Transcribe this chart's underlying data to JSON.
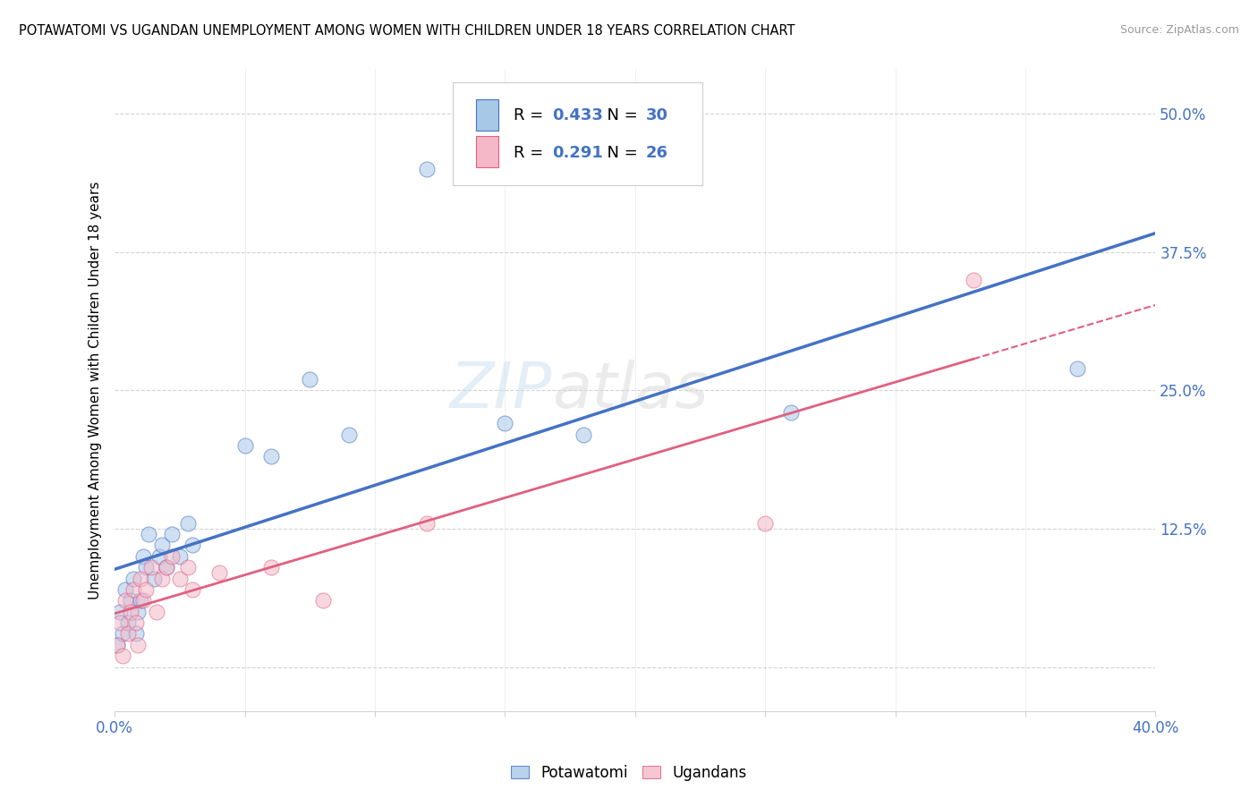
{
  "title": "POTAWATOMI VS UGANDAN UNEMPLOYMENT AMONG WOMEN WITH CHILDREN UNDER 18 YEARS CORRELATION CHART",
  "source": "Source: ZipAtlas.com",
  "ylabel": "Unemployment Among Women with Children Under 18 years",
  "legend_label1": "Potawatomi",
  "legend_label2": "Ugandans",
  "R1": 0.433,
  "N1": 30,
  "R2": 0.291,
  "N2": 26,
  "color_blue": "#a8c8e8",
  "color_pink": "#f4b8c8",
  "color_blue_line": "#4472c4",
  "color_pink_line": "#e06080",
  "xlim": [
    0.0,
    0.4
  ],
  "ylim": [
    -0.04,
    0.54
  ],
  "yticks": [
    0.0,
    0.125,
    0.25,
    0.375,
    0.5
  ],
  "ytick_labels": [
    "",
    "12.5%",
    "25.0%",
    "37.5%",
    "50.0%"
  ],
  "potawatomi_x": [
    0.001,
    0.002,
    0.003,
    0.004,
    0.005,
    0.006,
    0.007,
    0.008,
    0.009,
    0.01,
    0.011,
    0.012,
    0.013,
    0.015,
    0.017,
    0.018,
    0.02,
    0.022,
    0.025,
    0.028,
    0.03,
    0.05,
    0.06,
    0.075,
    0.09,
    0.12,
    0.15,
    0.18,
    0.26,
    0.37
  ],
  "potawatomi_y": [
    0.02,
    0.05,
    0.03,
    0.07,
    0.04,
    0.06,
    0.08,
    0.03,
    0.05,
    0.06,
    0.1,
    0.09,
    0.12,
    0.08,
    0.1,
    0.11,
    0.09,
    0.12,
    0.1,
    0.13,
    0.11,
    0.2,
    0.19,
    0.26,
    0.21,
    0.45,
    0.22,
    0.21,
    0.23,
    0.27
  ],
  "ugandan_x": [
    0.001,
    0.002,
    0.003,
    0.004,
    0.005,
    0.006,
    0.007,
    0.008,
    0.009,
    0.01,
    0.011,
    0.012,
    0.014,
    0.016,
    0.018,
    0.02,
    0.022,
    0.025,
    0.028,
    0.03,
    0.04,
    0.06,
    0.08,
    0.12,
    0.25,
    0.33
  ],
  "ugandan_y": [
    0.02,
    0.04,
    0.01,
    0.06,
    0.03,
    0.05,
    0.07,
    0.04,
    0.02,
    0.08,
    0.06,
    0.07,
    0.09,
    0.05,
    0.08,
    0.09,
    0.1,
    0.08,
    0.09,
    0.07,
    0.085,
    0.09,
    0.06,
    0.13,
    0.13,
    0.35
  ]
}
